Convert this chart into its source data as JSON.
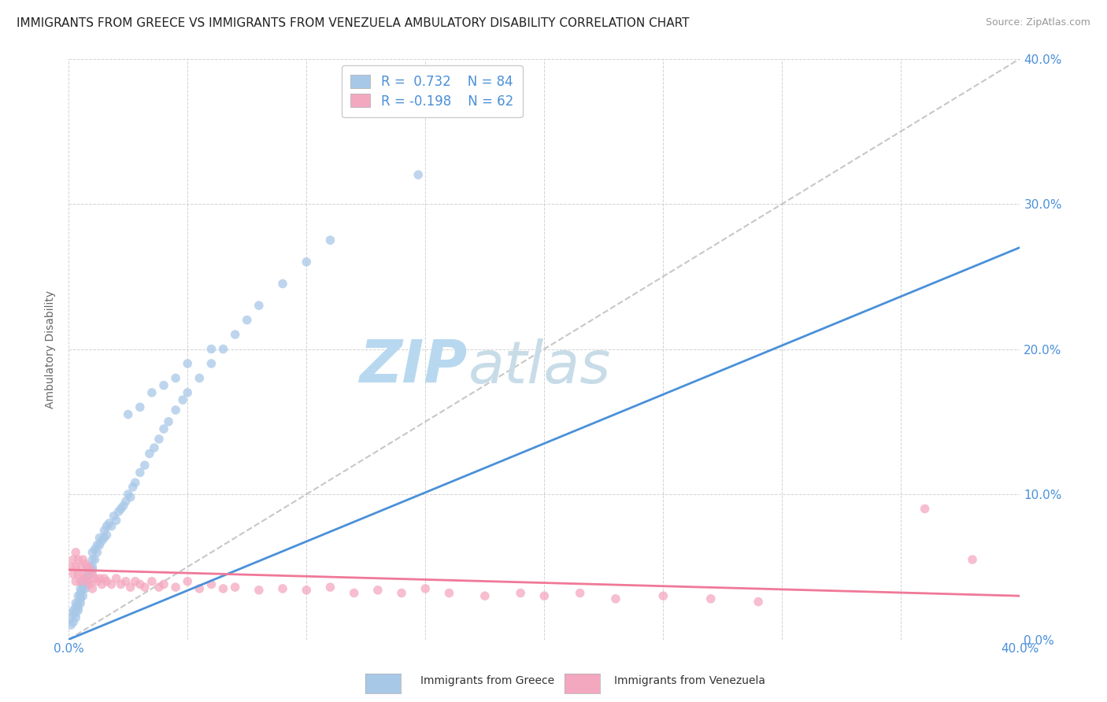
{
  "title": "IMMIGRANTS FROM GREECE VS IMMIGRANTS FROM VENEZUELA AMBULATORY DISABILITY CORRELATION CHART",
  "source": "Source: ZipAtlas.com",
  "ylabel": "Ambulatory Disability",
  "greece_R": 0.732,
  "greece_N": 84,
  "venezuela_R": -0.198,
  "venezuela_N": 62,
  "greece_color": "#a8c8e8",
  "venezuela_color": "#f4a8c0",
  "greece_line_color": "#4a90d9",
  "venezuela_line_color": "#f07898",
  "regression_line_color": "#b0b0b0",
  "background_color": "#ffffff",
  "grid_color": "#c8c8c8",
  "watermark_color": "#d8eef8",
  "right_yticks": [
    "40.0%",
    "30.0%",
    "20.0%",
    "10.0%",
    "0.0%"
  ],
  "right_ytick_vals": [
    0.4,
    0.3,
    0.2,
    0.1,
    0.0
  ],
  "xlim": [
    0.0,
    0.4
  ],
  "ylim": [
    0.0,
    0.4
  ],
  "greece_x": [
    0.001,
    0.001,
    0.002,
    0.002,
    0.002,
    0.003,
    0.003,
    0.003,
    0.003,
    0.004,
    0.004,
    0.004,
    0.004,
    0.005,
    0.005,
    0.005,
    0.005,
    0.005,
    0.006,
    0.006,
    0.006,
    0.006,
    0.007,
    0.007,
    0.007,
    0.008,
    0.008,
    0.008,
    0.009,
    0.009,
    0.01,
    0.01,
    0.01,
    0.01,
    0.011,
    0.011,
    0.012,
    0.012,
    0.013,
    0.013,
    0.014,
    0.015,
    0.015,
    0.016,
    0.016,
    0.017,
    0.018,
    0.019,
    0.02,
    0.021,
    0.022,
    0.023,
    0.024,
    0.025,
    0.026,
    0.027,
    0.028,
    0.03,
    0.032,
    0.034,
    0.036,
    0.038,
    0.04,
    0.042,
    0.045,
    0.048,
    0.05,
    0.055,
    0.06,
    0.065,
    0.07,
    0.075,
    0.08,
    0.09,
    0.1,
    0.11,
    0.025,
    0.03,
    0.035,
    0.04,
    0.045,
    0.05,
    0.06,
    0.147
  ],
  "greece_y": [
    0.01,
    0.015,
    0.012,
    0.02,
    0.018,
    0.015,
    0.022,
    0.018,
    0.025,
    0.02,
    0.025,
    0.03,
    0.022,
    0.025,
    0.03,
    0.035,
    0.028,
    0.032,
    0.03,
    0.035,
    0.04,
    0.038,
    0.035,
    0.042,
    0.038,
    0.04,
    0.045,
    0.048,
    0.045,
    0.05,
    0.05,
    0.055,
    0.06,
    0.048,
    0.055,
    0.062,
    0.06,
    0.065,
    0.065,
    0.07,
    0.068,
    0.07,
    0.075,
    0.072,
    0.078,
    0.08,
    0.078,
    0.085,
    0.082,
    0.088,
    0.09,
    0.092,
    0.095,
    0.1,
    0.098,
    0.105,
    0.108,
    0.115,
    0.12,
    0.128,
    0.132,
    0.138,
    0.145,
    0.15,
    0.158,
    0.165,
    0.17,
    0.18,
    0.19,
    0.2,
    0.21,
    0.22,
    0.23,
    0.245,
    0.26,
    0.275,
    0.155,
    0.16,
    0.17,
    0.175,
    0.18,
    0.19,
    0.2,
    0.32
  ],
  "venezuela_x": [
    0.001,
    0.002,
    0.002,
    0.003,
    0.003,
    0.003,
    0.004,
    0.004,
    0.005,
    0.005,
    0.006,
    0.006,
    0.007,
    0.007,
    0.008,
    0.008,
    0.009,
    0.009,
    0.01,
    0.01,
    0.011,
    0.012,
    0.013,
    0.014,
    0.015,
    0.016,
    0.018,
    0.02,
    0.022,
    0.024,
    0.026,
    0.028,
    0.03,
    0.032,
    0.035,
    0.038,
    0.04,
    0.045,
    0.05,
    0.055,
    0.06,
    0.065,
    0.07,
    0.08,
    0.09,
    0.1,
    0.11,
    0.12,
    0.13,
    0.14,
    0.15,
    0.16,
    0.175,
    0.19,
    0.2,
    0.215,
    0.23,
    0.25,
    0.27,
    0.29,
    0.36,
    0.38
  ],
  "venezuela_y": [
    0.05,
    0.045,
    0.055,
    0.04,
    0.05,
    0.06,
    0.045,
    0.055,
    0.04,
    0.05,
    0.045,
    0.055,
    0.042,
    0.052,
    0.04,
    0.05,
    0.038,
    0.048,
    0.035,
    0.045,
    0.042,
    0.04,
    0.042,
    0.038,
    0.042,
    0.04,
    0.038,
    0.042,
    0.038,
    0.04,
    0.036,
    0.04,
    0.038,
    0.036,
    0.04,
    0.036,
    0.038,
    0.036,
    0.04,
    0.035,
    0.038,
    0.035,
    0.036,
    0.034,
    0.035,
    0.034,
    0.036,
    0.032,
    0.034,
    0.032,
    0.035,
    0.032,
    0.03,
    0.032,
    0.03,
    0.032,
    0.028,
    0.03,
    0.028,
    0.026,
    0.09,
    0.055
  ],
  "greece_line": [
    [
      0.0,
      0.4
    ],
    [
      0.0,
      0.27
    ]
  ],
  "venezuela_line": [
    [
      0.0,
      0.4
    ],
    [
      0.048,
      0.03
    ]
  ]
}
